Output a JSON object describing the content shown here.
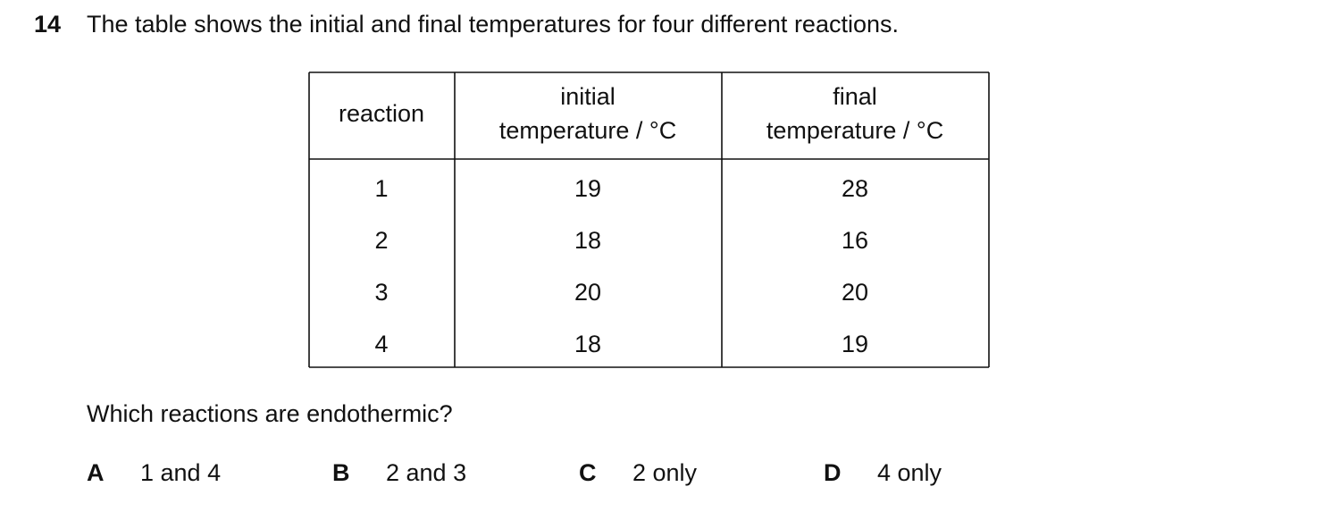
{
  "question": {
    "number": "14",
    "stem": "The table shows the initial and final temperatures for four different reactions.",
    "table": {
      "header": [
        [
          "reaction"
        ],
        [
          "initial",
          "temperature / °C"
        ],
        [
          "final",
          "temperature / °C"
        ]
      ],
      "rows": [
        [
          "1",
          "19",
          "28"
        ],
        [
          "2",
          "18",
          "16"
        ],
        [
          "3",
          "20",
          "20"
        ],
        [
          "4",
          "18",
          "19"
        ]
      ]
    },
    "prompt": "Which reactions are endothermic?",
    "options": [
      {
        "letter": "A",
        "text": "1 and 4"
      },
      {
        "letter": "B",
        "text": "2 and 3"
      },
      {
        "letter": "C",
        "text": "2 only"
      },
      {
        "letter": "D",
        "text": "4 only"
      }
    ]
  }
}
